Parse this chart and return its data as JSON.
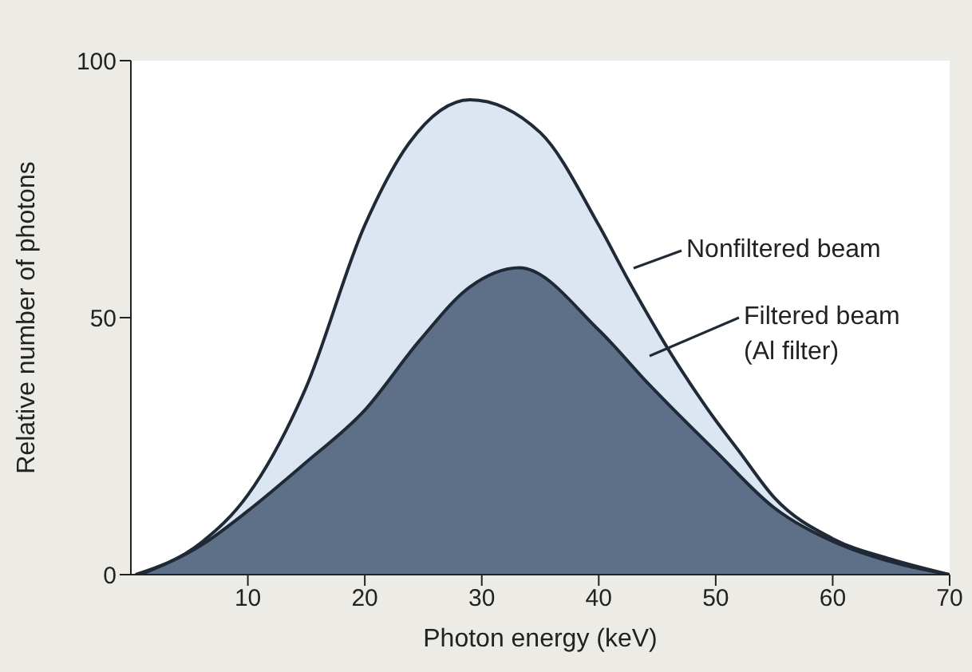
{
  "chart_data": {
    "type": "area",
    "xlabel": "Photon energy (keV)",
    "ylabel": "Relative number of photons",
    "xlim": [
      0,
      70
    ],
    "xticks": [
      10,
      20,
      30,
      40,
      50,
      60,
      70
    ],
    "ylim": [
      0,
      100
    ],
    "yticks": [
      0,
      50,
      100
    ],
    "legend": "right",
    "series": [
      {
        "name": "Nonfiltered beam",
        "color": "#dce6f2",
        "x": [
          0.4,
          6,
          10,
          14.9,
          20,
          23.8,
          29,
          35,
          40,
          42.6,
          47,
          50,
          52,
          55,
          60,
          65,
          70
        ],
        "values": [
          0,
          6.2,
          15.5,
          36,
          68,
          84,
          92.4,
          86,
          68,
          57,
          40,
          30,
          24,
          15,
          7,
          3,
          0
        ]
      },
      {
        "name": "Filtered beam\n(Al filter)",
        "color": "#5d7088",
        "x": [
          0.8,
          6,
          10,
          14.9,
          20,
          24.7,
          29,
          33.2,
          40,
          44.3,
          50,
          55,
          60,
          65,
          70
        ],
        "values": [
          0,
          5.7,
          12.4,
          21.7,
          32,
          45.6,
          56,
          59.7,
          47.6,
          37,
          24,
          13,
          6.5,
          2.5,
          0
        ]
      }
    ]
  }
}
